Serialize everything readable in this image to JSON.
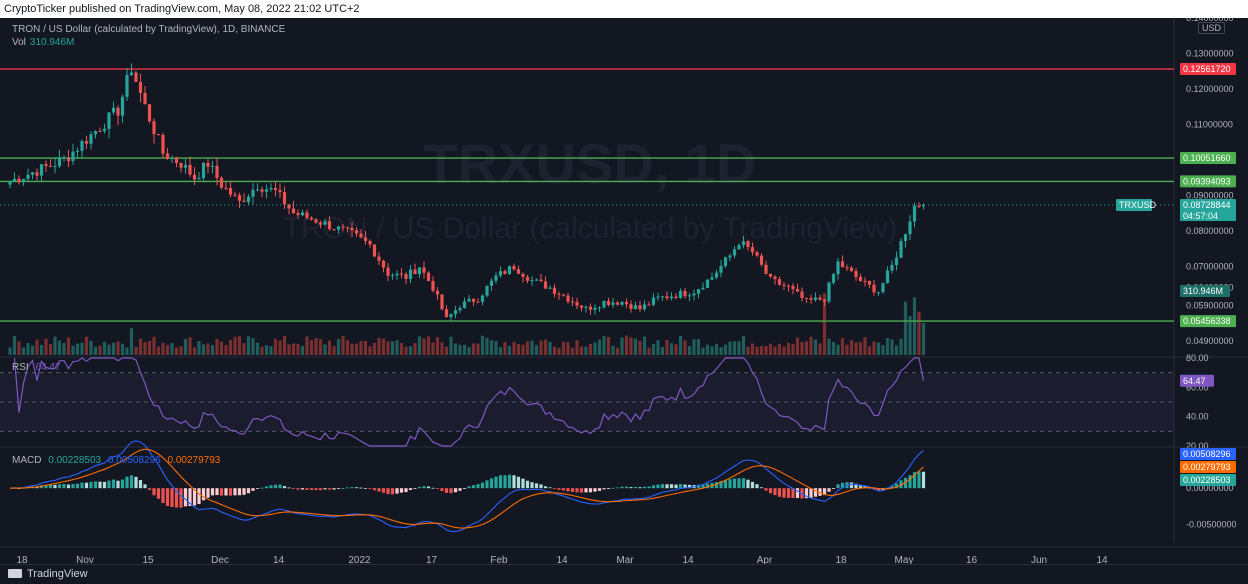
{
  "header": {
    "publisher_line": "CryptoTicker published on TradingView.com, May 08, 2022 21:02 UTC+2"
  },
  "legend": {
    "symbol": "TRON / US Dollar (calculated by TradingView), 1D, BINANCE",
    "vol_label": "Vol",
    "vol_value": "310.946M"
  },
  "watermark": {
    "ticker": "TRXUSD, 1D",
    "name": "TRON / US Dollar (calculated by TradingView)"
  },
  "currency_button": "USD",
  "footer": {
    "brand": "TradingView"
  },
  "colors": {
    "bull": "#26a69a",
    "bear": "#ef5350",
    "resistance": "#f23645",
    "support": "#4caf50",
    "rsi": "#7e57c2",
    "macd": "#2962ff",
    "signal": "#ff6d00",
    "last_price": "#26a69a"
  },
  "chart_data": [
    {
      "type": "candlestick",
      "panel": "price",
      "ylim": [
        0.045,
        0.14
      ],
      "price_ticks": [
        "0.14000000",
        "0.13000000",
        "0.12000000",
        "0.11000000",
        "0.10000000",
        "0.09000000",
        "0.08000000",
        "0.07000000",
        "0.06400000",
        "0.05900000",
        "0.04900000"
      ],
      "tick_values": [
        0.14,
        0.13,
        0.12,
        0.11,
        0.1,
        0.09,
        0.08,
        0.07,
        0.064,
        0.059,
        0.049
      ],
      "time_ticks": [
        "18",
        "Nov",
        "15",
        "Dec",
        "14",
        "2022",
        "17",
        "Feb",
        "14",
        "Mar",
        "14",
        "Apr",
        "18",
        "May",
        "16",
        "Jun",
        "14"
      ],
      "time_tick_days": [
        0,
        14,
        28,
        44,
        57,
        75,
        91,
        106,
        120,
        134,
        148,
        165,
        182,
        196,
        211,
        226,
        240
      ],
      "horizontal_levels": [
        {
          "value": 0.1256172,
          "label": "0.12561720",
          "color": "#f23645"
        },
        {
          "value": 0.1005166,
          "label": "0.10051660",
          "color": "#4caf50"
        },
        {
          "value": 0.09394093,
          "label": "0.09394093",
          "color": "#4caf50"
        },
        {
          "value": 0.05456338,
          "label": "0.05456338",
          "color": "#4caf50"
        }
      ],
      "last_price": {
        "symbol": "TRXUSD",
        "value": 0.08728844,
        "label": "0.08728844",
        "countdown": "04:57:04"
      },
      "volume_badge": "310.946M",
      "anchors": [
        [
          0,
          0.094
        ],
        [
          6,
          0.097
        ],
        [
          12,
          0.1
        ],
        [
          18,
          0.107
        ],
        [
          24,
          0.114
        ],
        [
          27,
          0.126
        ],
        [
          30,
          0.115
        ],
        [
          34,
          0.102
        ],
        [
          38,
          0.099
        ],
        [
          41,
          0.095
        ],
        [
          44,
          0.099
        ],
        [
          47,
          0.093
        ],
        [
          51,
          0.088
        ],
        [
          55,
          0.093
        ],
        [
          59,
          0.091
        ],
        [
          63,
          0.085
        ],
        [
          68,
          0.083
        ],
        [
          72,
          0.081
        ],
        [
          76,
          0.079
        ],
        [
          80,
          0.076
        ],
        [
          84,
          0.068
        ],
        [
          88,
          0.067
        ],
        [
          91,
          0.07
        ],
        [
          94,
          0.064
        ],
        [
          97,
          0.055
        ],
        [
          100,
          0.059
        ],
        [
          104,
          0.061
        ],
        [
          108,
          0.067
        ],
        [
          112,
          0.07
        ],
        [
          116,
          0.066
        ],
        [
          120,
          0.064
        ],
        [
          124,
          0.061
        ],
        [
          128,
          0.058
        ],
        [
          132,
          0.06
        ],
        [
          136,
          0.06
        ],
        [
          140,
          0.058
        ],
        [
          144,
          0.061
        ],
        [
          148,
          0.062
        ],
        [
          152,
          0.063
        ],
        [
          156,
          0.067
        ],
        [
          160,
          0.073
        ],
        [
          162,
          0.077
        ],
        [
          165,
          0.074
        ],
        [
          169,
          0.066
        ],
        [
          173,
          0.064
        ],
        [
          177,
          0.06
        ],
        [
          181,
          0.061
        ],
        [
          184,
          0.071
        ],
        [
          186,
          0.069
        ],
        [
          190,
          0.065
        ],
        [
          193,
          0.063
        ],
        [
          196,
          0.07
        ],
        [
          199,
          0.08
        ],
        [
          201,
          0.087
        ],
        [
          203,
          0.088
        ]
      ],
      "volume_ylim": [
        0,
        700
      ],
      "volume_spikes": [
        [
          27,
          260
        ],
        [
          181,
          600
        ],
        [
          199,
          520
        ],
        [
          200,
          380
        ],
        [
          201,
          560
        ],
        [
          202,
          420
        ],
        [
          203,
          311
        ]
      ]
    },
    {
      "type": "line",
      "panel": "rsi",
      "label": "RSI",
      "current": "64.47",
      "ylim": [
        20,
        80
      ],
      "ticks": [
        "80.00",
        "60.00",
        "40.00",
        "20.00"
      ],
      "tick_values": [
        80,
        60,
        40,
        20
      ],
      "bands": [
        70,
        50,
        30
      ]
    },
    {
      "type": "bar+line",
      "panel": "macd",
      "label": "MACD",
      "values_text": [
        "0.00228503",
        "0.00508296",
        "0.00279793"
      ],
      "series_names": [
        "histogram",
        "macd",
        "signal"
      ],
      "ticks": [
        "0.00000000",
        "-0.00500000"
      ],
      "tick_values": [
        0,
        -0.005
      ],
      "ylim": [
        -0.0075,
        0.0055
      ],
      "current": {
        "histogram": 0.00228503,
        "macd": 0.00508296,
        "signal": 0.00279793
      }
    }
  ]
}
